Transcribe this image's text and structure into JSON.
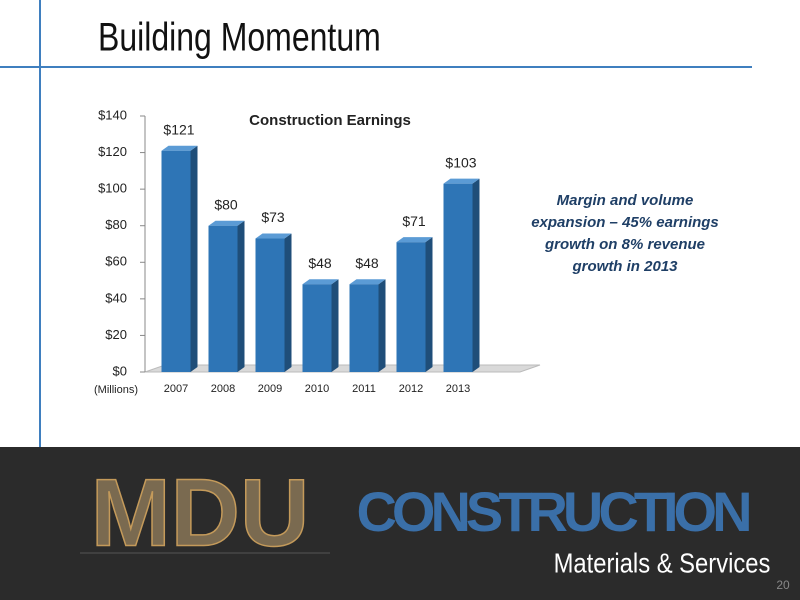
{
  "title": "Building Momentum",
  "chart_data": {
    "type": "bar",
    "title": "Construction Earnings",
    "categories": [
      "2007",
      "2008",
      "2009",
      "2010",
      "2011",
      "2012",
      "2013"
    ],
    "values": [
      121,
      80,
      73,
      48,
      48,
      71,
      103
    ],
    "value_labels": [
      "$121",
      "$80",
      "$73",
      "$48",
      "$48",
      "$71",
      "$103"
    ],
    "color": "#2e75b6",
    "ylim": [
      0,
      140
    ],
    "yticks": [
      {
        "value": 0,
        "label": "$0"
      },
      {
        "value": 20,
        "label": "$20"
      },
      {
        "value": 40,
        "label": "$40"
      },
      {
        "value": 60,
        "label": "$60"
      },
      {
        "value": 80,
        "label": "$80"
      },
      {
        "value": 100,
        "label": "$100"
      },
      {
        "value": 120,
        "label": "$120"
      },
      {
        "value": 140,
        "label": "$140"
      }
    ],
    "y_unit_label": "(Millions)",
    "grid": false
  },
  "annotation": [
    "Margin and volume",
    "expansion – 45% earnings",
    "growth on 8% revenue",
    "growth in 2013"
  ],
  "footer": {
    "logo": "MDU",
    "brand": "CONSTRUCTION",
    "tagline": "Materials & Services"
  },
  "page_number": "20"
}
